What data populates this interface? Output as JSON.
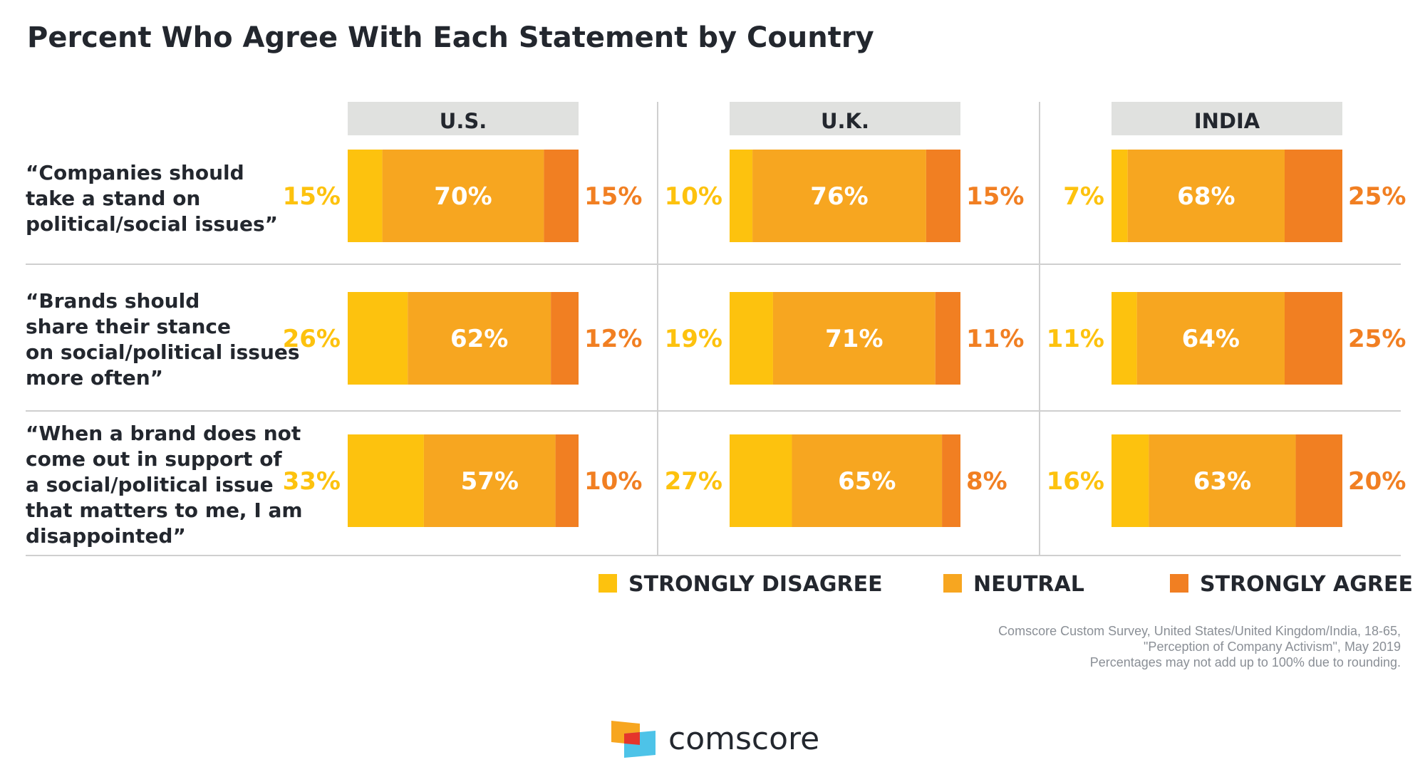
{
  "colors": {
    "strongly_disagree": "#FDC20E",
    "neutral": "#F7A620",
    "strongly_agree": "#F17F22",
    "header_bg": "#E0E1DF",
    "rule": "#CFCFCF",
    "text": "#23272E"
  },
  "chart_data": {
    "type": "bar",
    "stacked": true,
    "orientation": "horizontal",
    "title": "Percent Who Agree With Each Statement by Country",
    "panels": [
      "U.S.",
      "U.K.",
      "INDIA"
    ],
    "categories": [
      "“Companies should take a stand on political/social issues”",
      "“Brands should share their stance on social/political issues more often”",
      "“When a brand does not come out in support of a social/political issue that matters to me, I am disappointed”"
    ],
    "category_lines": [
      [
        "“Companies should",
        "take a stand on",
        "political/social issues”"
      ],
      [
        "“Brands should",
        "share their stance",
        "on social/political issues",
        "more often”"
      ],
      [
        "“When a brand does not",
        "come out in support of",
        "a social/political issue",
        "that matters to me, I am",
        "disappointed”"
      ]
    ],
    "series": [
      {
        "name": "STRONGLY DISAGREE",
        "values": [
          [
            15,
            10,
            7
          ],
          [
            26,
            19,
            11
          ],
          [
            33,
            27,
            16
          ]
        ]
      },
      {
        "name": "NEUTRAL",
        "values": [
          [
            70,
            76,
            68
          ],
          [
            62,
            71,
            64
          ],
          [
            57,
            65,
            63
          ]
        ]
      },
      {
        "name": "STRONGLY AGREE",
        "values": [
          [
            15,
            15,
            25
          ],
          [
            12,
            11,
            25
          ],
          [
            10,
            8,
            20
          ]
        ]
      }
    ],
    "legend_position": "bottom-right",
    "unit": "%"
  },
  "source": [
    "Comscore Custom Survey, United States/United Kingdom/India, 18-65,",
    "\"Perception of Company Activism\", May 2019",
    "Percentages may not add up to 100% due to rounding."
  ],
  "brand": {
    "name": "comscore",
    "logo_colors": [
      "#F7A620",
      "#E5352B",
      "#4DC3E8"
    ]
  }
}
